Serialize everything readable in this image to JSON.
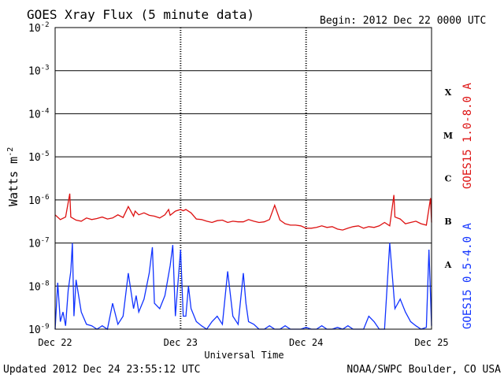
{
  "chart_data": {
    "type": "line",
    "title": "GOES Xray Flux (5 minute data)",
    "begin_label": "Begin:  2012 Dec 22 0000 UTC",
    "ylabel": "Watts m",
    "ylabel_sup": "-2",
    "xlabel": "Universal Time",
    "yscale": "log",
    "ylim": [
      1e-09,
      0.01
    ],
    "y_ticks": [
      {
        "value": 0.01,
        "mant": "10",
        "exp": "-2"
      },
      {
        "value": 0.001,
        "mant": "10",
        "exp": "-3"
      },
      {
        "value": 0.0001,
        "mant": "10",
        "exp": "-4"
      },
      {
        "value": 1e-05,
        "mant": "10",
        "exp": "-5"
      },
      {
        "value": 1e-06,
        "mant": "10",
        "exp": "-6"
      },
      {
        "value": 1e-07,
        "mant": "10",
        "exp": "-7"
      },
      {
        "value": 1e-08,
        "mant": "10",
        "exp": "-8"
      },
      {
        "value": 1e-09,
        "mant": "10",
        "exp": "-9"
      }
    ],
    "xlim_hours": [
      0,
      72
    ],
    "x_ticks": [
      {
        "hour": 0,
        "label": "Dec 22"
      },
      {
        "hour": 24,
        "label": "Dec 23"
      },
      {
        "hour": 48,
        "label": "Dec 24"
      },
      {
        "hour": 72,
        "label": "Dec 25"
      }
    ],
    "flare_classes": [
      {
        "label": "X",
        "level": 0.0001
      },
      {
        "label": "M",
        "level": 1e-05
      },
      {
        "label": "C",
        "level": 1e-06
      },
      {
        "label": "B",
        "level": 1e-07
      },
      {
        "label": "A",
        "level": 1e-08
      }
    ],
    "series": [
      {
        "name": "GOES15 1.0-8.0 A",
        "color": "#dd1111",
        "hours": [
          0,
          1,
          2,
          2.8,
          3,
          4,
          5,
          6,
          7,
          8,
          9,
          10,
          11,
          12,
          13,
          14,
          15,
          15.3,
          16,
          17,
          18,
          19,
          20,
          21,
          21.7,
          22,
          23,
          24,
          24.5,
          25,
          26,
          27,
          28,
          29,
          30,
          31,
          32,
          33,
          34,
          35,
          36,
          37,
          38,
          39,
          40,
          41,
          42,
          43,
          44,
          45,
          46,
          47,
          48,
          49,
          50,
          51,
          52,
          53,
          54,
          55,
          56,
          57,
          58,
          59,
          60,
          61,
          62,
          63,
          64,
          64.8,
          65,
          66,
          67,
          68,
          69,
          70,
          71,
          71.8,
          72
        ],
        "values": [
          4.5e-07,
          3.5e-07,
          4e-07,
          1.4e-06,
          4e-07,
          3.4e-07,
          3.2e-07,
          3.8e-07,
          3.5e-07,
          3.7e-07,
          4e-07,
          3.6e-07,
          3.8e-07,
          4.5e-07,
          3.9e-07,
          7e-07,
          4.2e-07,
          5.5e-07,
          4.5e-07,
          5e-07,
          4.4e-07,
          4.2e-07,
          3.8e-07,
          4.5e-07,
          6e-07,
          4.4e-07,
          5.5e-07,
          6e-07,
          5.6e-07,
          6e-07,
          5e-07,
          3.6e-07,
          3.5e-07,
          3.2e-07,
          3e-07,
          3.3e-07,
          3.4e-07,
          3e-07,
          3.2e-07,
          3.1e-07,
          3.1e-07,
          3.5e-07,
          3.2e-07,
          3e-07,
          3.1e-07,
          3.5e-07,
          7.5e-07,
          3.4e-07,
          2.8e-07,
          2.6e-07,
          2.6e-07,
          2.5e-07,
          2.2e-07,
          2.2e-07,
          2.3e-07,
          2.5e-07,
          2.3e-07,
          2.4e-07,
          2.1e-07,
          2e-07,
          2.2e-07,
          2.4e-07,
          2.5e-07,
          2.2e-07,
          2.4e-07,
          2.3e-07,
          2.5e-07,
          3e-07,
          2.5e-07,
          1.3e-06,
          4e-07,
          3.6e-07,
          2.8e-07,
          3e-07,
          3.2e-07,
          2.8e-07,
          2.6e-07,
          1.1e-06,
          3e-07
        ]
      },
      {
        "name": "GOES15 0.5-4.0 A",
        "color": "#1133ff",
        "hours": [
          0,
          0.5,
          1,
          1.5,
          2,
          2.5,
          3,
          3.3,
          3.6,
          4,
          5,
          6,
          7,
          8,
          9,
          10,
          11,
          12,
          13,
          14,
          15,
          15.5,
          16,
          17,
          18,
          18.6,
          19,
          20,
          21,
          22,
          22.5,
          23,
          24,
          24.5,
          25,
          25.5,
          26,
          27,
          28,
          29,
          30,
          31,
          32,
          33,
          34,
          35,
          36,
          36.5,
          37,
          38,
          39,
          40,
          41,
          42,
          43,
          44,
          45,
          46,
          47,
          48,
          49,
          50,
          51,
          52,
          53,
          54,
          55,
          56,
          57,
          58,
          59,
          60,
          61,
          62,
          63,
          64,
          64.6,
          65,
          66,
          67,
          68,
          69,
          70,
          71,
          71.5,
          72
        ],
        "values": [
          1e-09,
          1.2e-08,
          1.5e-09,
          2.5e-09,
          1.2e-09,
          8e-09,
          2.2e-08,
          1e-07,
          2e-09,
          1.4e-08,
          2.5e-09,
          1.3e-09,
          1.2e-09,
          1e-09,
          1.2e-09,
          1e-09,
          4e-09,
          1.3e-09,
          2e-09,
          2e-08,
          3e-09,
          6e-09,
          2.5e-09,
          5e-09,
          2e-08,
          8e-08,
          4e-09,
          3e-09,
          6e-09,
          3e-08,
          9e-08,
          2e-09,
          7e-08,
          2e-09,
          2e-09,
          1e-08,
          3e-09,
          1.5e-09,
          1.2e-09,
          1e-09,
          1.5e-09,
          2e-09,
          1.3e-09,
          2.2e-08,
          2e-09,
          1.3e-09,
          2e-08,
          4e-09,
          1.5e-09,
          1.3e-09,
          1e-09,
          1e-09,
          1.2e-09,
          1e-09,
          1e-09,
          1.2e-09,
          1e-09,
          1e-09,
          1e-09,
          1.1e-09,
          1e-09,
          1e-09,
          1.2e-09,
          1e-09,
          1e-09,
          1.1e-09,
          1e-09,
          1.2e-09,
          1e-09,
          1e-09,
          1e-09,
          2e-09,
          1.5e-09,
          1e-09,
          1e-09,
          1e-07,
          1.2e-08,
          3e-09,
          5e-09,
          2.5e-09,
          1.5e-09,
          1.2e-09,
          1e-09,
          1.1e-09,
          7e-08,
          1.2e-09
        ]
      }
    ]
  },
  "footer": {
    "updated": "Updated 2012 Dec 24 23:55:12 UTC",
    "source": "NOAA/SWPC Boulder, CO USA"
  }
}
